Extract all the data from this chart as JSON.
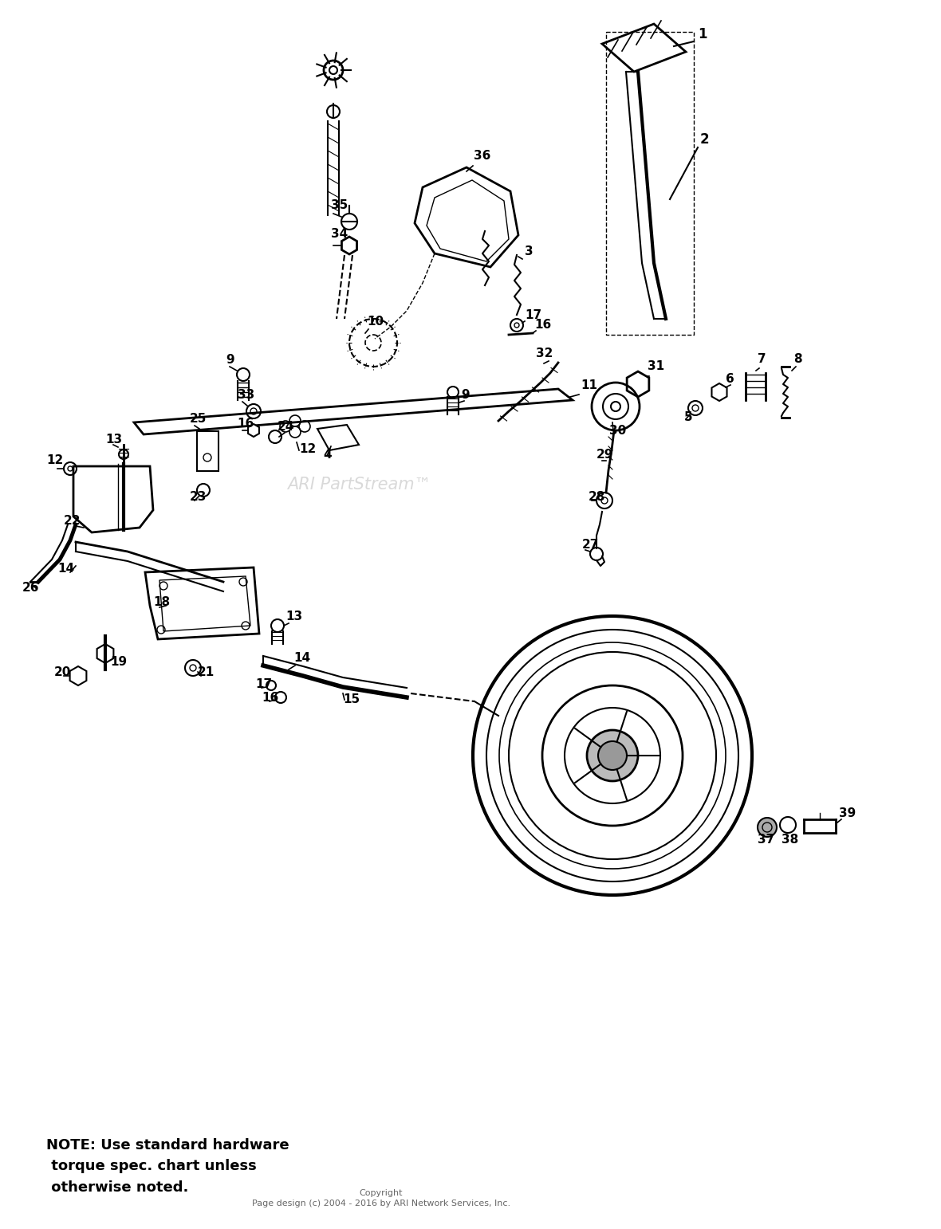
{
  "background_color": "#ffffff",
  "note_text": "NOTE: Use standard hardware\n torque spec. chart unless\n otherwise noted.",
  "copyright_text": "Copyright\nPage design (c) 2004 - 2016 by ARI Network Services, Inc.",
  "watermark": "ARI PartStream™",
  "fig_width": 11.8,
  "fig_height": 15.42
}
